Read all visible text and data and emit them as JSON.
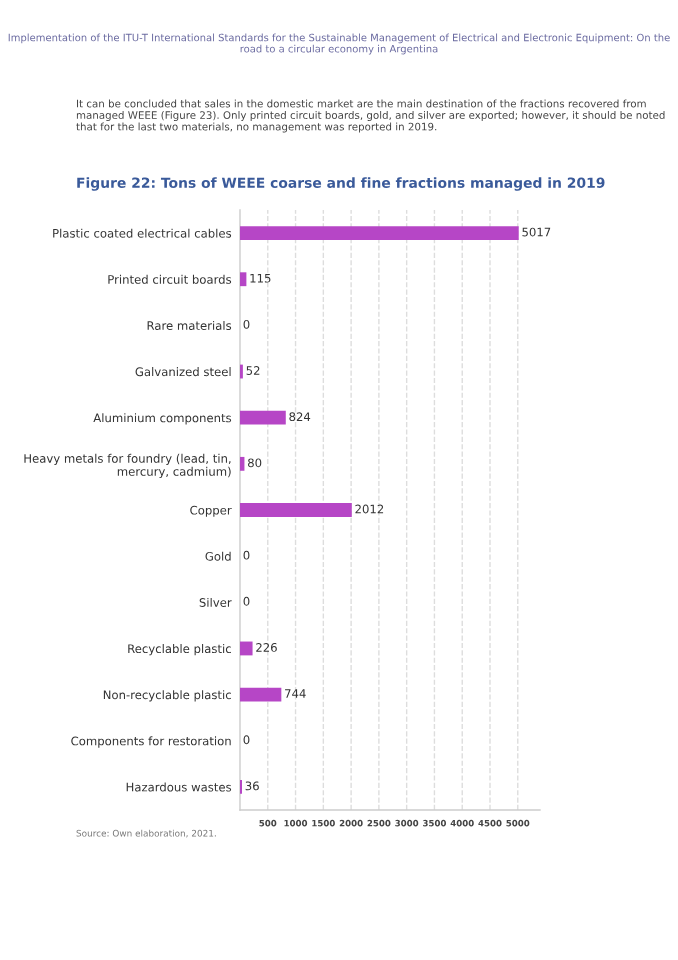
{
  "chart_data": {
    "type": "bar",
    "orientation": "horizontal",
    "title": "Figure 22: Tons of WEEE coarse and fine fractions managed in 2019",
    "annotations": [
      "Implementation of the ITU-T International Standards for the Sustainable Management of Electrical and Electronic Equipment: On the road to a circular economy in Argentina",
      "It can be concluded that sales in the domestic market are the main destination of the fractions recovered from managed WEEE (Figure 23). Only printed circuit boards, gold, and silver are exported; however, it should be noted that for the last two materials, no management was reported in 2019.",
      "Source: Own elaboration, 2021."
    ],
    "categories": [
      "Plastic coated electrical cables",
      "Printed circuit boards",
      "Rare materials",
      "Galvanized steel",
      "Aluminium components",
      "Heavy metals for foundry (lead, tin, mercury, cadmium)",
      "Copper",
      "Gold",
      "Silver",
      "Recyclable plastic",
      "Non-recyclable plastic",
      "Components for restoration",
      "Hazardous wastes"
    ],
    "values": [
      5017,
      115,
      0,
      52,
      824,
      80,
      2012,
      0,
      0,
      226,
      744,
      0,
      36
    ],
    "color": "#b646c6",
    "data_labels": true,
    "xlim": [
      0,
      5400
    ],
    "xticks": [
      500,
      1000,
      1500,
      2000,
      2500,
      3000,
      3500,
      4000,
      4500,
      5000
    ],
    "grid": "x"
  }
}
